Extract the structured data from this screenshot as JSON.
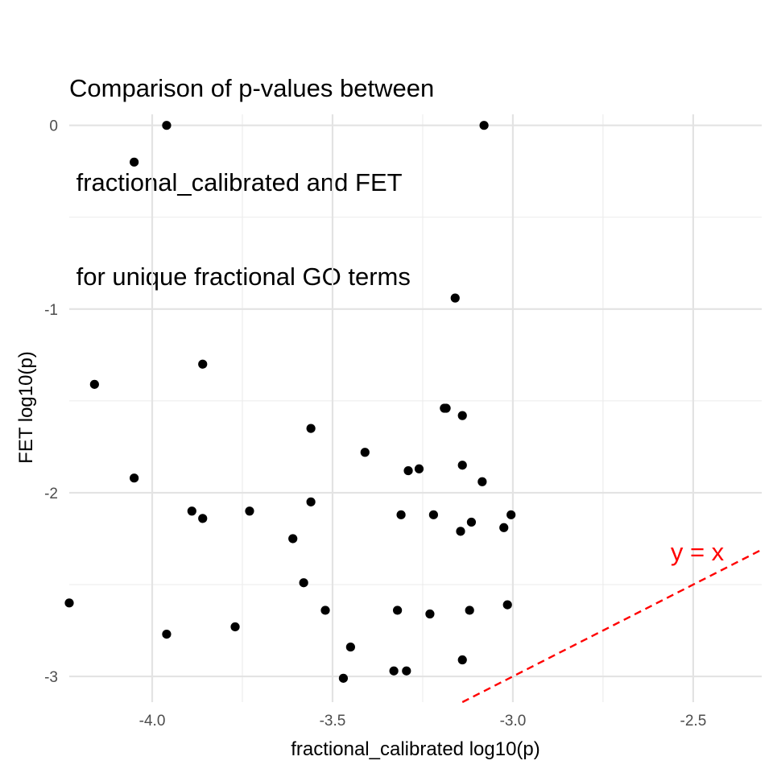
{
  "chart_data": {
    "type": "scatter",
    "title_lines": [
      "Comparison of p-values between",
      " fractional_calibrated and FET",
      " for unique fractional GO terms"
    ],
    "xlabel": "fractional_calibrated log10(p)",
    "ylabel": "FET log10(p)",
    "xlim": [
      -4.23,
      -2.31
    ],
    "ylim": [
      -3.14,
      0.06
    ],
    "x_ticks": [
      -4.0,
      -3.5,
      -3.0,
      -2.5
    ],
    "x_tick_labels": [
      "-4.0",
      "-3.5",
      "-3.0",
      "-2.5"
    ],
    "y_ticks": [
      0,
      -1,
      -2,
      -3
    ],
    "y_tick_labels": [
      "0",
      "-1",
      "-2",
      "-3"
    ],
    "grid": true,
    "point_color": "#000000",
    "reference_line": {
      "slope": 1,
      "intercept": 0,
      "color": "#ff0000",
      "style": "dashed",
      "label": "y = x"
    },
    "points": [
      {
        "x": -3.96,
        "y": 0.0
      },
      {
        "x": -3.08,
        "y": 0.0
      },
      {
        "x": -4.05,
        "y": -0.2
      },
      {
        "x": -3.16,
        "y": -0.94
      },
      {
        "x": -3.86,
        "y": -1.3
      },
      {
        "x": -4.16,
        "y": -1.41
      },
      {
        "x": -3.19,
        "y": -1.54
      },
      {
        "x": -3.185,
        "y": -1.54
      },
      {
        "x": -3.14,
        "y": -1.58
      },
      {
        "x": -3.56,
        "y": -1.65
      },
      {
        "x": -3.41,
        "y": -1.78
      },
      {
        "x": -3.26,
        "y": -1.87
      },
      {
        "x": -3.29,
        "y": -1.88
      },
      {
        "x": -3.14,
        "y": -1.85
      },
      {
        "x": -4.05,
        "y": -1.92
      },
      {
        "x": -3.085,
        "y": -1.94
      },
      {
        "x": -3.56,
        "y": -2.05
      },
      {
        "x": -3.89,
        "y": -2.1
      },
      {
        "x": -3.73,
        "y": -2.1
      },
      {
        "x": -3.86,
        "y": -2.14
      },
      {
        "x": -3.31,
        "y": -2.12
      },
      {
        "x": -3.22,
        "y": -2.12
      },
      {
        "x": -3.115,
        "y": -2.16
      },
      {
        "x": -3.005,
        "y": -2.12
      },
      {
        "x": -3.025,
        "y": -2.19
      },
      {
        "x": -3.145,
        "y": -2.21
      },
      {
        "x": -3.61,
        "y": -2.25
      },
      {
        "x": -3.58,
        "y": -2.49
      },
      {
        "x": -4.23,
        "y": -2.6
      },
      {
        "x": -3.52,
        "y": -2.64
      },
      {
        "x": -3.32,
        "y": -2.64
      },
      {
        "x": -3.12,
        "y": -2.64
      },
      {
        "x": -3.015,
        "y": -2.61
      },
      {
        "x": -3.23,
        "y": -2.66
      },
      {
        "x": -3.77,
        "y": -2.73
      },
      {
        "x": -3.96,
        "y": -2.77
      },
      {
        "x": -3.45,
        "y": -2.84
      },
      {
        "x": -3.14,
        "y": -2.91
      },
      {
        "x": -3.33,
        "y": -2.97
      },
      {
        "x": -3.295,
        "y": -2.97
      },
      {
        "x": -3.47,
        "y": -3.01
      }
    ]
  }
}
